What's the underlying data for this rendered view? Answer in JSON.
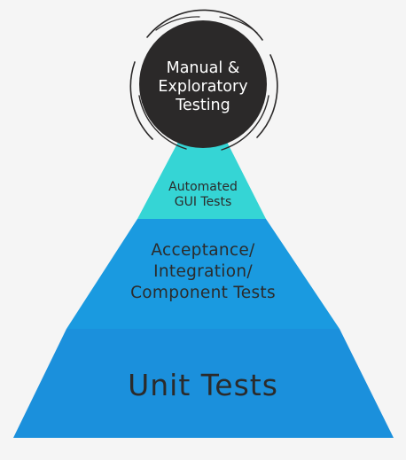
{
  "diagram": {
    "manual": {
      "lines": [
        "Manual &",
        "Exploratory",
        "Testing"
      ]
    },
    "gui": {
      "lines": [
        "Automated",
        "GUI Tests"
      ]
    },
    "acceptance": {
      "lines": [
        "Acceptance/",
        "Integration/",
        "Component Tests"
      ]
    },
    "unit": {
      "lines": [
        "Unit Tests"
      ]
    }
  },
  "colors": {
    "background": "#f5f5f5",
    "unit_layer": "#1b90dc",
    "acceptance_layer": "#1a9ae0",
    "gui_layer": "#35d5d5",
    "gui_top_layer": "#2fd0d0",
    "manual_circle": "#2b2929",
    "ring_stroke": "#2b2929",
    "text_dark": "#2b2b2b",
    "text_light": "#ffffff"
  }
}
